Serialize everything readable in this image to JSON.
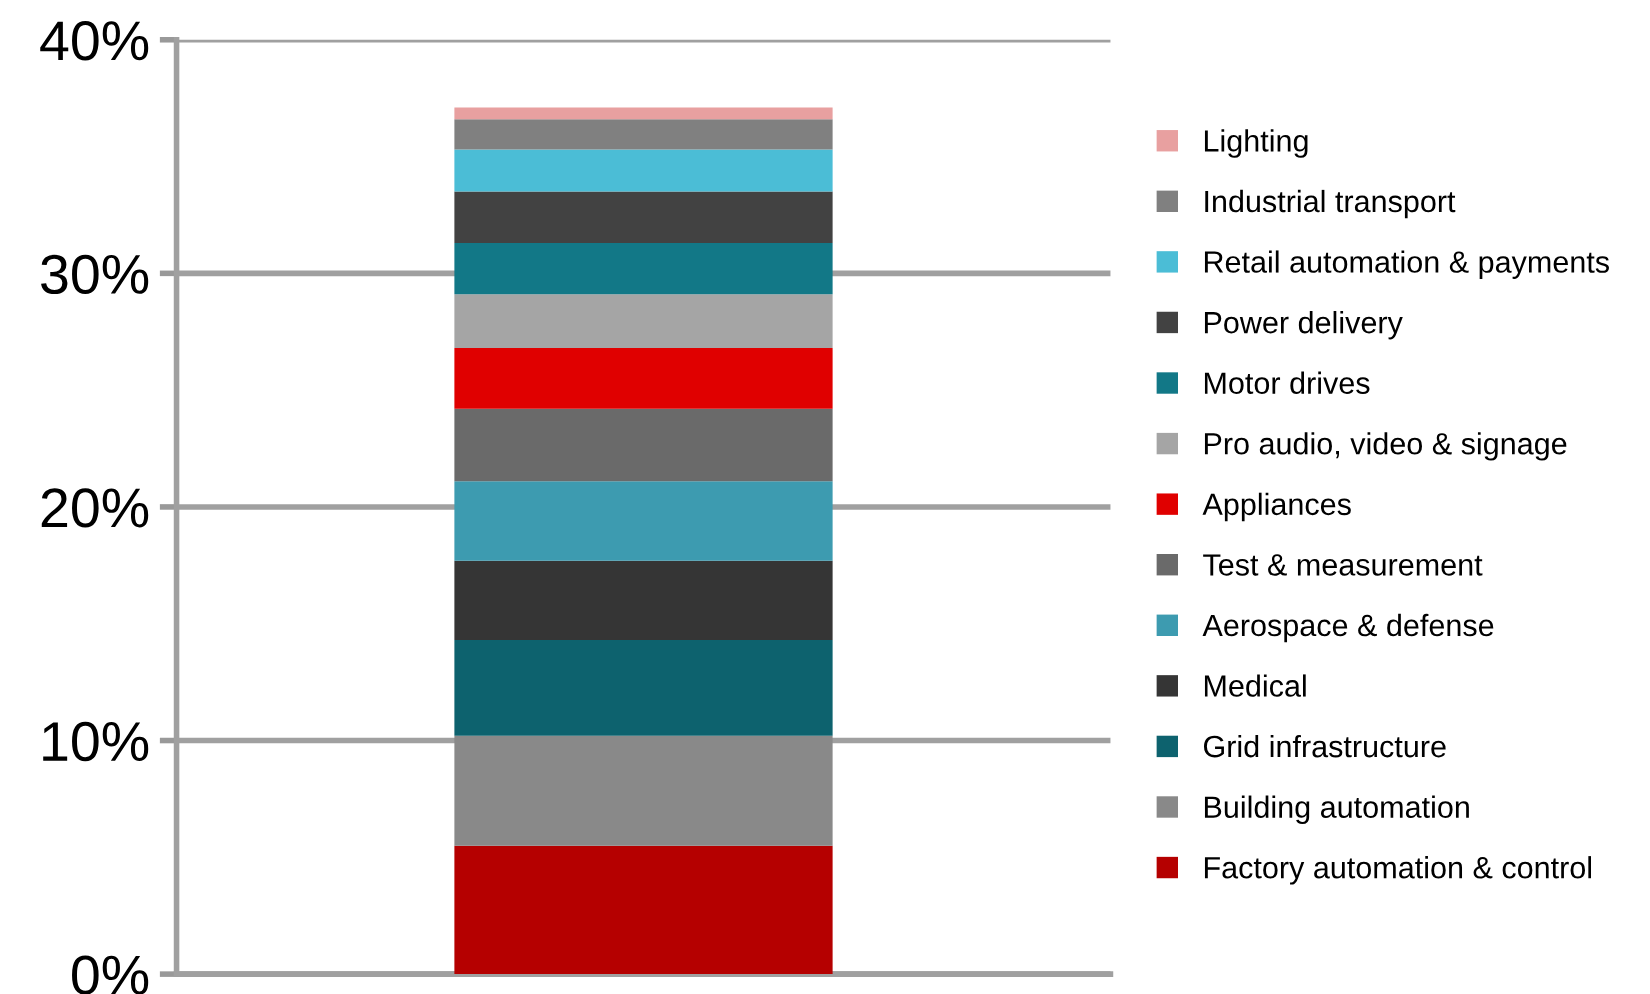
{
  "chart_data": {
    "type": "bar",
    "stacked": true,
    "categories": [
      null
    ],
    "series": [
      {
        "name": "Factory automation & control",
        "color": "#b50000",
        "values": [
          5.5
        ]
      },
      {
        "name": "Building automation",
        "color": "#898989",
        "values": [
          4.7
        ]
      },
      {
        "name": "Grid infrastructure",
        "color": "#0d626e",
        "values": [
          4.1
        ]
      },
      {
        "name": "Medical",
        "color": "#353535",
        "values": [
          3.4
        ]
      },
      {
        "name": "Aerospace & defense",
        "color": "#3d9bb0",
        "values": [
          3.4
        ]
      },
      {
        "name": "Test & measurement",
        "color": "#6a6a6a",
        "values": [
          3.1
        ]
      },
      {
        "name": "Appliances",
        "color": "#e00000",
        "values": [
          2.6
        ]
      },
      {
        "name": "Pro audio, video & signage",
        "color": "#a5a5a5",
        "values": [
          2.3
        ]
      },
      {
        "name": "Motor drives",
        "color": "#127887",
        "values": [
          2.2
        ]
      },
      {
        "name": "Power delivery",
        "color": "#424242",
        "values": [
          2.2
        ]
      },
      {
        "name": "Retail automation & payments",
        "color": "#4bbdd6",
        "values": [
          1.8
        ]
      },
      {
        "name": "Industrial transport",
        "color": "#808080",
        "values": [
          1.3
        ]
      },
      {
        "name": "Lighting",
        "color": "#e8a0a0",
        "values": [
          0.5
        ]
      }
    ],
    "ylim": [
      0,
      40
    ],
    "yticks": [
      {
        "value": 0,
        "label": "0%"
      },
      {
        "value": 10,
        "label": "10%"
      },
      {
        "value": 20,
        "label": "20%"
      },
      {
        "value": 30,
        "label": "30%"
      },
      {
        "value": 40,
        "label": "40%"
      }
    ],
    "grid": "y",
    "legend": "right",
    "tick_labels": "y"
  }
}
